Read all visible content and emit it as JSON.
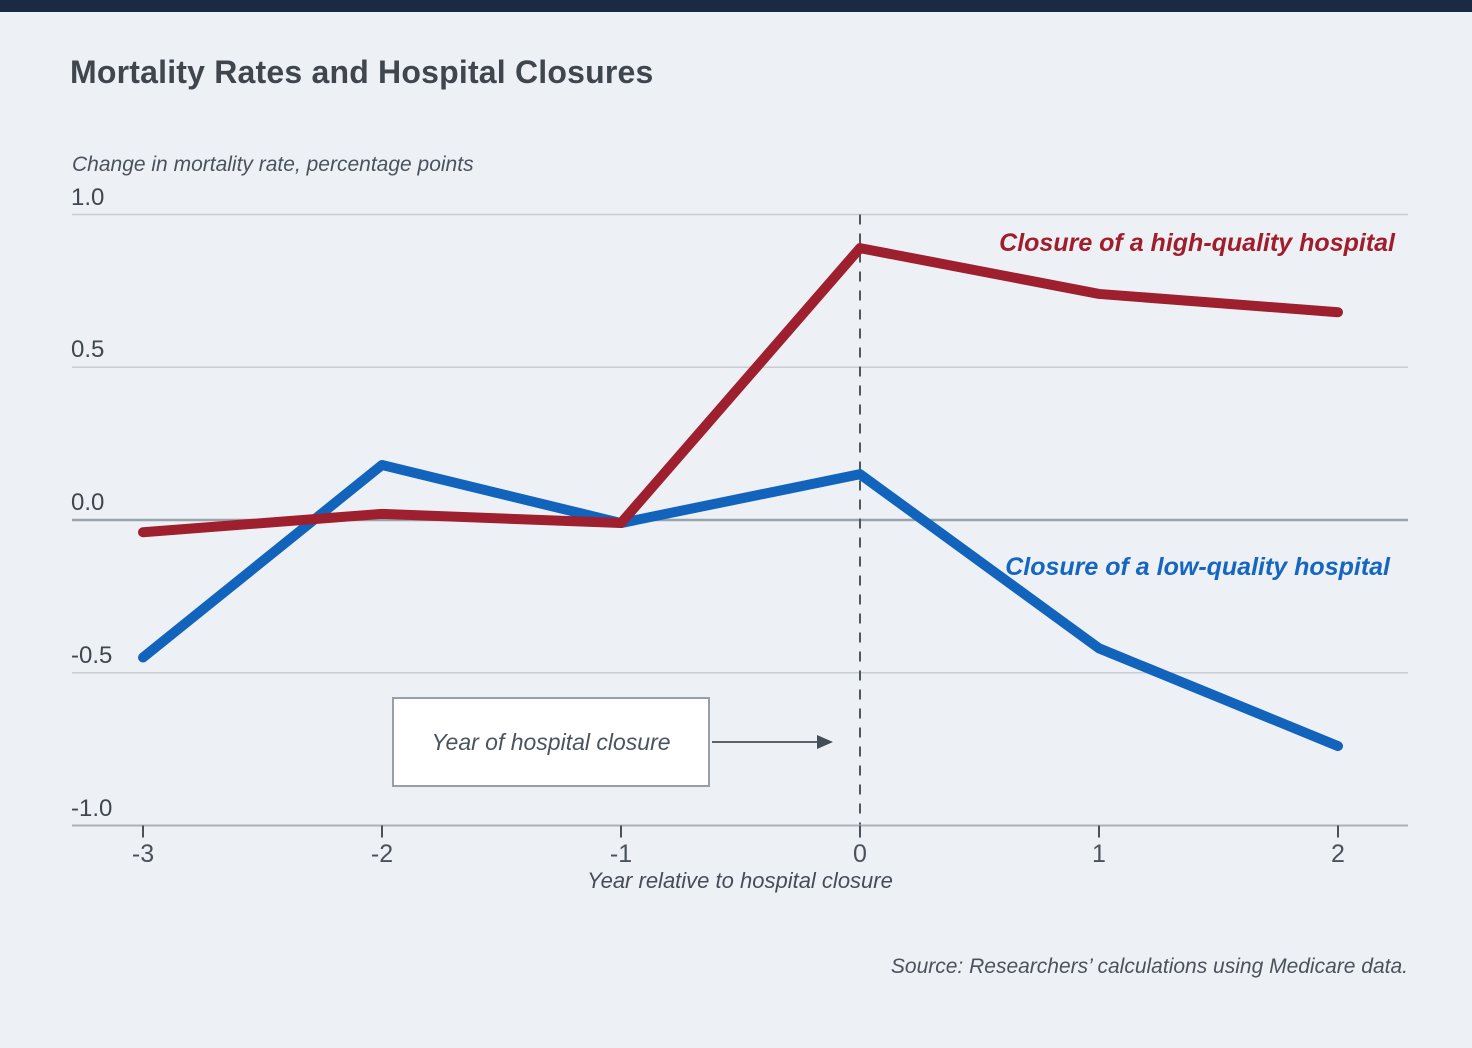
{
  "page": {
    "background_color": "#edf1f6",
    "top_bar_color": "#1b2a44"
  },
  "title": "Mortality Rates and Hospital Closures",
  "chart_data": {
    "type": "line",
    "title": "Mortality Rates and Hospital Closures",
    "ylabel": "Change in mortality rate, percentage points",
    "xlabel": "Year relative to hospital closure",
    "x": [
      -3,
      -2,
      -1,
      0,
      1,
      2
    ],
    "x_tick_labels": [
      "-3",
      "-2",
      "-1",
      "0",
      "1",
      "2"
    ],
    "y_ticks": [
      1.0,
      0.5,
      0.0,
      -0.5,
      -1.0
    ],
    "y_tick_labels": [
      "1.0",
      "0.5",
      "0.0",
      "-0.5",
      "-1.0"
    ],
    "ylim": [
      -1.0,
      1.0
    ],
    "xlim": [
      -3,
      2
    ],
    "grid": "horizontal",
    "legend_position": "inline-labels",
    "series": [
      {
        "name": "Closure of a high-quality hospital",
        "color": "#9e1f2d",
        "label_color": "#a01e2c",
        "values": [
          -0.04,
          0.02,
          -0.01,
          0.89,
          0.74,
          0.68
        ]
      },
      {
        "name": "Closure of a low-quality hospital",
        "color": "#1263bc",
        "label_color": "#1566c0",
        "values": [
          -0.45,
          0.18,
          -0.01,
          0.15,
          -0.42,
          -0.74
        ]
      }
    ],
    "reference_line": {
      "x": 0,
      "style": "dashed",
      "color": "#4f575f"
    },
    "annotation": {
      "text": "Year of hospital closure",
      "points_to_x": 0
    },
    "source": "Source: Researchers’ calculations using Medicare data."
  }
}
